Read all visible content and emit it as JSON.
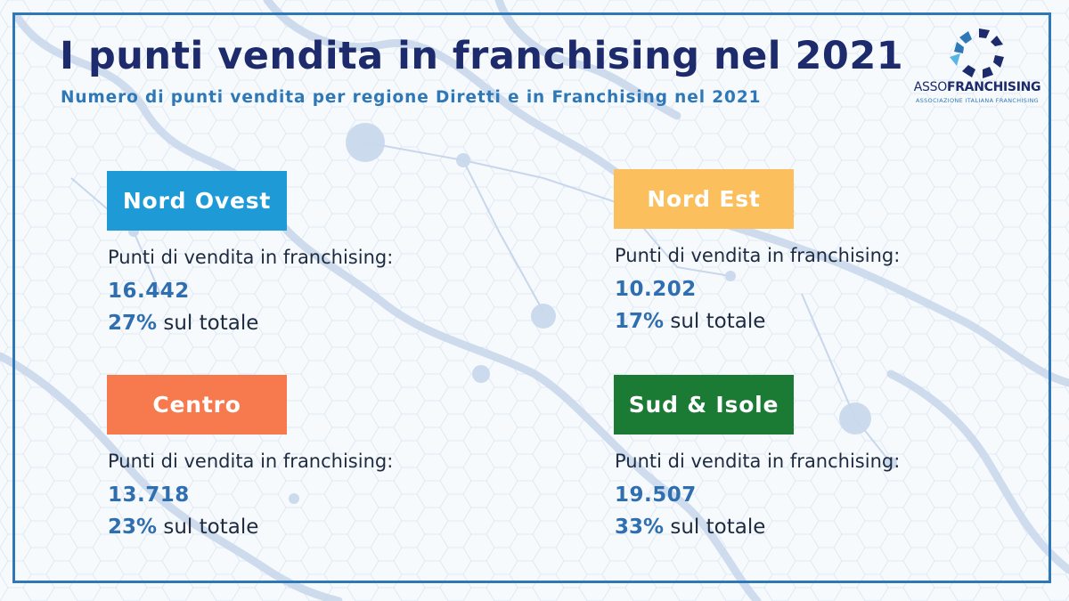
{
  "header": {
    "title": "I punti vendita in franchising nel 2021",
    "subtitle": "Numero di punti vendita per regione Diretti e in Franchising nel 2021"
  },
  "logo": {
    "word_light": "ASSO",
    "word_bold": "FRANCHISING",
    "tagline": "ASSOCIAZIONE ITALIANA FRANCHISING",
    "colors": {
      "navy": "#1d2a6b",
      "blue": "#2f78b7",
      "light_blue": "#58b6e6"
    }
  },
  "regions": [
    {
      "name": "Nord Ovest",
      "color": "#1e9bd7",
      "label": "Punti di vendita in franchising:",
      "value": "16.442",
      "percent": "27%",
      "suffix": " sul totale"
    },
    {
      "name": "Nord Est",
      "color": "#fbbf5e",
      "label": "Punti di vendita in franchising:",
      "value": "10.202",
      "percent": "17%",
      "suffix": " sul totale"
    },
    {
      "name": "Centro",
      "color": "#f77a4e",
      "label": "Punti di vendita in franchising:",
      "value": "13.718",
      "percent": "23%",
      "suffix": " sul totale"
    },
    {
      "name": "Sud & Isole",
      "color": "#1b7a34",
      "label": "Punti di vendita in franchising:",
      "value": "19.507",
      "percent": "33%",
      "suffix": " sul totale"
    }
  ]
}
